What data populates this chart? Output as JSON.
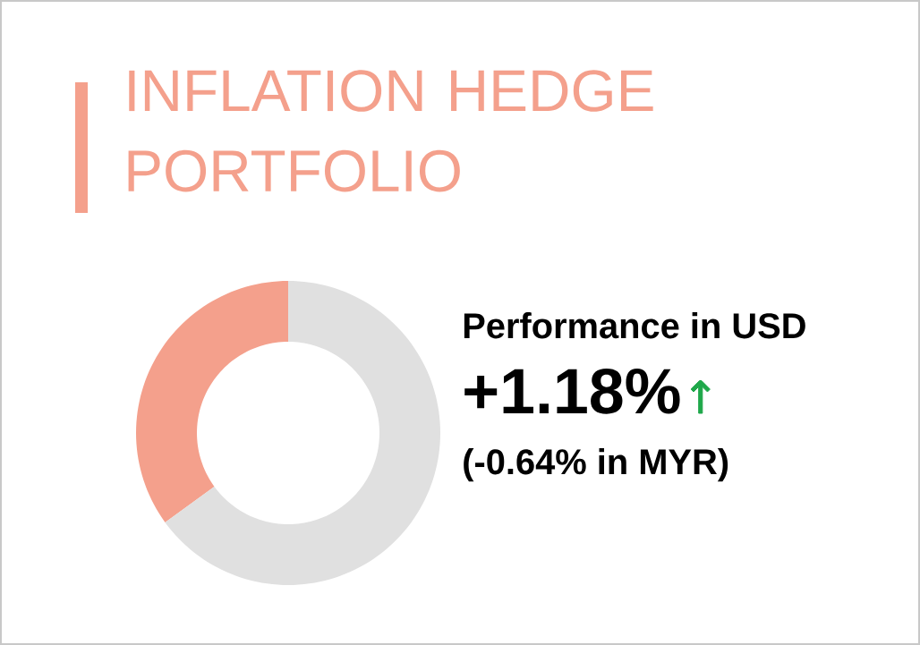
{
  "chart_data": {
    "type": "donut",
    "title": "INFLATION HEDGE PORTFOLIO",
    "categories": [
      null,
      null
    ],
    "values": [
      35,
      65
    ],
    "colors": [
      "#f4a08c",
      "#e0e0e0"
    ],
    "annotations": [
      "Performance in USD",
      "+1.18%",
      "↑",
      "(-0.64% in MYR)"
    ]
  }
}
